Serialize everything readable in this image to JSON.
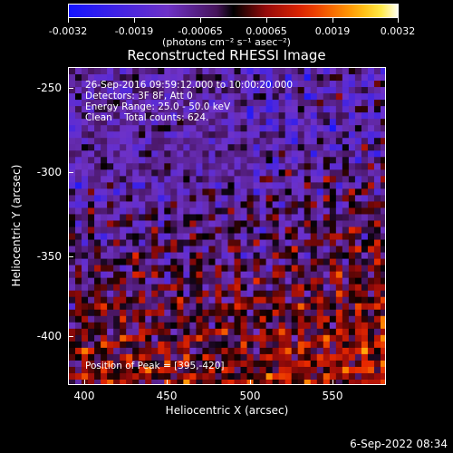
{
  "colorbar": {
    "ticks": [
      "-0.0032",
      "-0.0019",
      "-0.00065",
      "0.00065",
      "0.0019",
      "0.0032"
    ],
    "unit_label": "(photons cm⁻² s⁻¹ asec⁻²)"
  },
  "title": "Reconstructed RHESSI Image",
  "annotations": {
    "line1": "26-Sep-2016 09:59:12.000 to 10:00:20.000",
    "line2": "Detectors: 3F 8F, Att 0",
    "line3": "Energy Range: 25.0 - 50.0 keV",
    "line4": "Clean    Total counts: 624.",
    "peak": "Position of Peak = [395,-420]"
  },
  "axes": {
    "xlabel": "Heliocentric X (arcsec)",
    "ylabel": "Heliocentric Y (arcsec)",
    "xticks": [
      "400",
      "450",
      "500",
      "550"
    ],
    "yticks": [
      "-250",
      "-300",
      "-350",
      "-400"
    ]
  },
  "timestamp": "6-Sep-2022 08:34",
  "colors": {
    "background": "#000000",
    "axis": "#ffffff"
  }
}
